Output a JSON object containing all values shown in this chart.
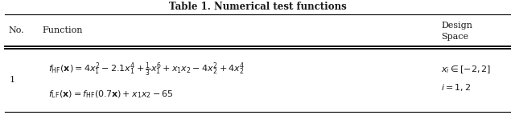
{
  "title": "Table 1. Numerical test functions",
  "no_header": "No.",
  "func_header": "Function",
  "design_header_1": "Design",
  "design_header_2": "Space",
  "row_no": "1",
  "hf_formula": "$f_{\\mathrm{HF}}(\\mathbf{x}) = 4x_1^2 - 2.1x_1^4 + \\frac{1}{3}x_1^6 + x_1 x_2 - 4x_2^2 + 4x_2^4$",
  "lf_formula": "$f_{\\mathrm{LF}}(\\mathbf{x}) = f_{\\mathrm{HF}}(0.7\\mathbf{x}) + x_1 x_2 - 65$",
  "design_space_1": "$x_i \\in [-2,2]$",
  "design_space_2": "$i=1,2$",
  "bg_color": "#ffffff",
  "line_color": "#000000",
  "text_color": "#1a1a1a",
  "title_fontsize": 8.5,
  "body_fontsize": 8.0,
  "figwidth": 6.4,
  "figheight": 1.44,
  "dpi": 100
}
